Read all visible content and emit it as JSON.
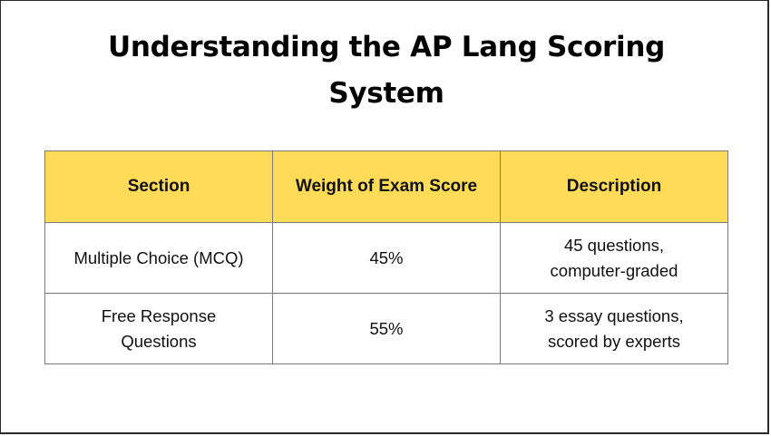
{
  "title": {
    "line1": "Understanding the AP Lang Scoring",
    "line2": "System"
  },
  "table": {
    "header_bg": "#ffdb58",
    "columns": [
      "Section",
      "Weight of Exam Score",
      "Description"
    ],
    "rows": [
      {
        "section": [
          "Multiple Choice (MCQ)"
        ],
        "weight": "45%",
        "description": [
          "45 questions,",
          "computer-graded"
        ]
      },
      {
        "section": [
          "Free Response",
          "Questions"
        ],
        "weight": "55%",
        "description": [
          "3 essay questions,",
          "scored by experts"
        ]
      }
    ]
  }
}
